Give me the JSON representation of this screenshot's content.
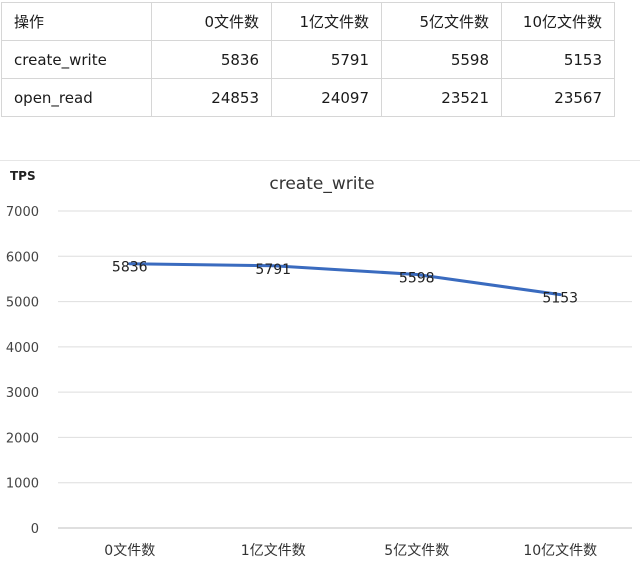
{
  "table": {
    "headers": [
      "操作",
      "0文件数",
      "1亿文件数",
      "5亿文件数",
      "10亿文件数"
    ],
    "rows": [
      {
        "op": "create_write",
        "values": [
          "5836",
          "5791",
          "5598",
          "5153"
        ]
      },
      {
        "op": "open_read",
        "values": [
          "24853",
          "24097",
          "23521",
          "23567"
        ]
      }
    ]
  },
  "chart_data": {
    "type": "line",
    "title": "create_write",
    "ylabel": "TPS",
    "xlabel": "",
    "categories": [
      "0文件数",
      "1亿文件数",
      "5亿文件数",
      "10亿文件数"
    ],
    "series": [
      {
        "values": [
          5836,
          5791,
          5598,
          5153
        ]
      }
    ],
    "yticks": [
      "0",
      "1000",
      "2000",
      "3000",
      "4000",
      "5000",
      "6000",
      "7000"
    ],
    "ylim": [
      0,
      7000
    ],
    "grid": true,
    "data_labels": true,
    "line_color": "#3a6bbf"
  }
}
